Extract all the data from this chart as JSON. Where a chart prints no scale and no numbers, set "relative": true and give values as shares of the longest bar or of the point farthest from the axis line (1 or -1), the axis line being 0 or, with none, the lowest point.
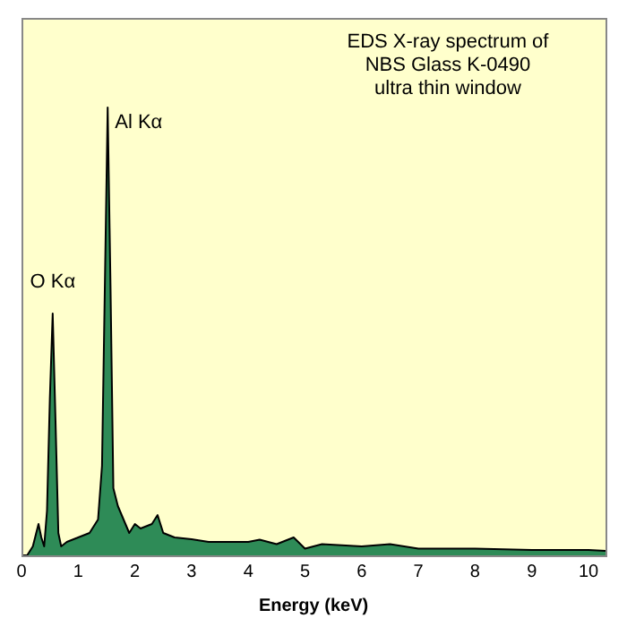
{
  "chart_data": {
    "type": "area",
    "relative": true,
    "title": "EDS X-ray spectrum of\nNBS Glass K-0490\nultra thin window",
    "xlabel": "Energy (keV)",
    "xlim": [
      0,
      10.3
    ],
    "xticks": [
      0,
      1,
      2,
      3,
      4,
      5,
      6,
      7,
      8,
      9,
      10
    ],
    "grid": false,
    "legend": false,
    "series": [
      {
        "color": "#2e8b57",
        "x": [
          0,
          0.1,
          0.2,
          0.3,
          0.35,
          0.4,
          0.45,
          0.5,
          0.55,
          0.6,
          0.65,
          0.7,
          0.8,
          1.0,
          1.2,
          1.35,
          1.42,
          1.47,
          1.52,
          1.57,
          1.62,
          1.7,
          1.8,
          1.9,
          2.0,
          2.1,
          2.3,
          2.4,
          2.5,
          2.7,
          3.0,
          3.3,
          3.6,
          4.0,
          4.2,
          4.5,
          4.8,
          5.0,
          5.3,
          6.0,
          6.5,
          7.0,
          8.0,
          9.0,
          10.0,
          10.3
        ],
        "values": [
          0,
          0,
          0.02,
          0.07,
          0.04,
          0.02,
          0.1,
          0.35,
          0.54,
          0.3,
          0.05,
          0.02,
          0.03,
          0.04,
          0.05,
          0.08,
          0.2,
          0.6,
          1,
          0.6,
          0.15,
          0.11,
          0.08,
          0.05,
          0.07,
          0.06,
          0.07,
          0.09,
          0.05,
          0.04,
          0.036,
          0.03,
          0.03,
          0.03,
          0.035,
          0.025,
          0.04,
          0.015,
          0.025,
          0.02,
          0.025,
          0.015,
          0.015,
          0.012,
          0.012,
          0.01
        ]
      }
    ],
    "annotations": [
      {
        "text": "O Kα",
        "x": 0.55,
        "y": 0.54
      },
      {
        "text": "Al Kα",
        "x": 1.52,
        "y": 1
      }
    ]
  }
}
